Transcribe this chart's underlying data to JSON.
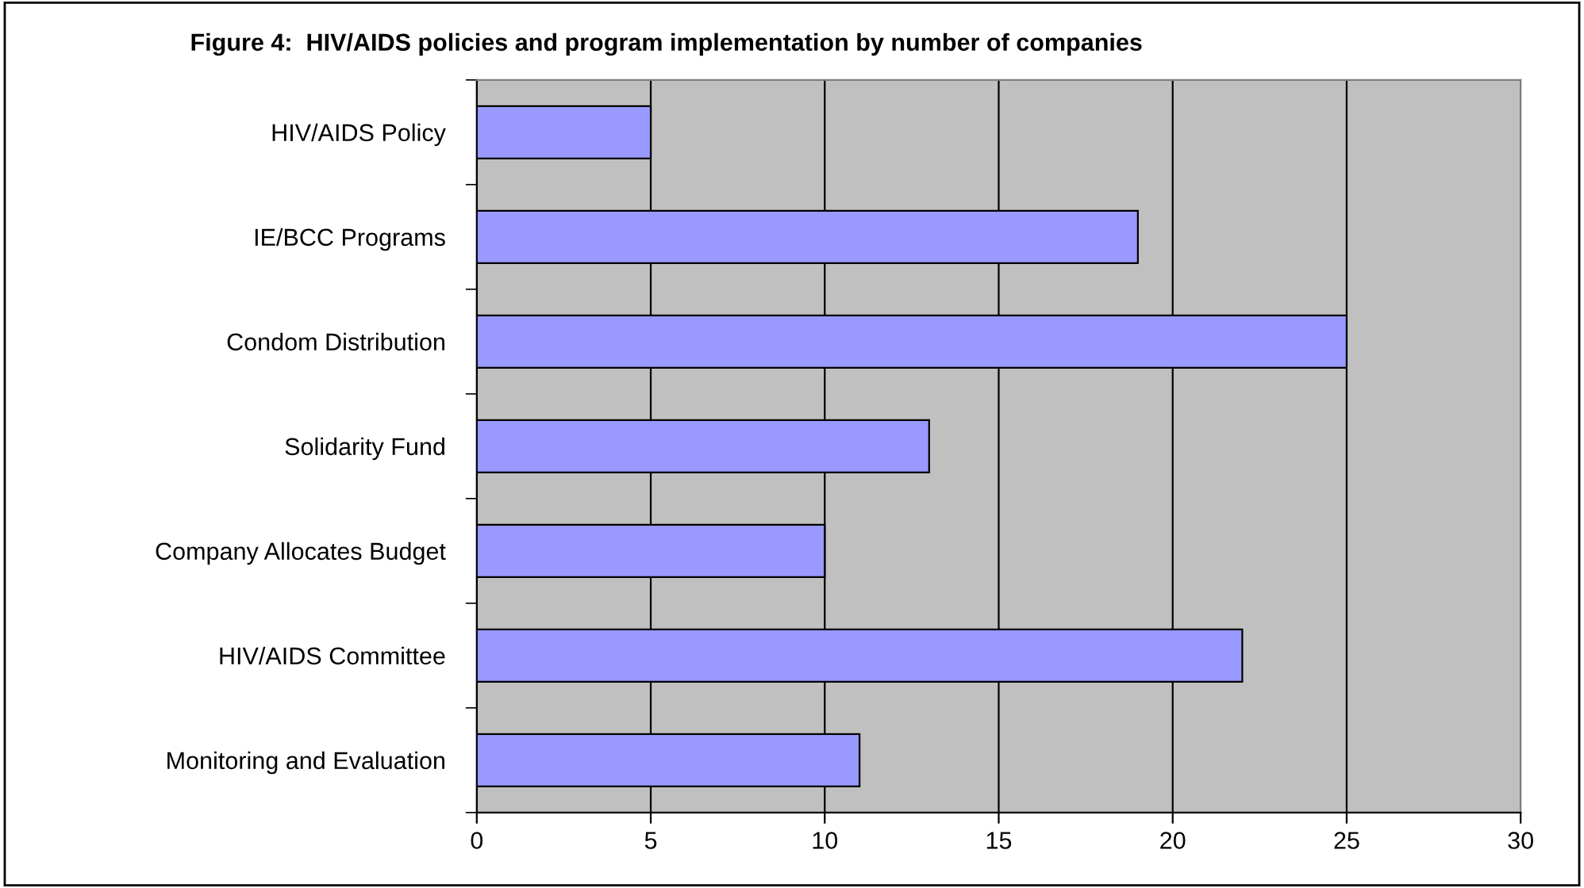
{
  "chart_data": {
    "type": "bar",
    "orientation": "horizontal",
    "title": "Figure 4:  HIV/AIDS policies and program implementation by number of companies",
    "categories": [
      "HIV/AIDS Policy",
      "IE/BCC Programs",
      "Condom Distribution",
      "Solidarity Fund",
      "Company Allocates Budget",
      "HIV/AIDS Committee",
      "Monitoring and Evaluation"
    ],
    "values": [
      5,
      19,
      25,
      13,
      10,
      22,
      11
    ],
    "color": "#9999ff",
    "xlim": [
      0,
      30
    ],
    "xticks": [
      0,
      5,
      10,
      15,
      20,
      25,
      30
    ],
    "grid": "x",
    "legend": false
  }
}
